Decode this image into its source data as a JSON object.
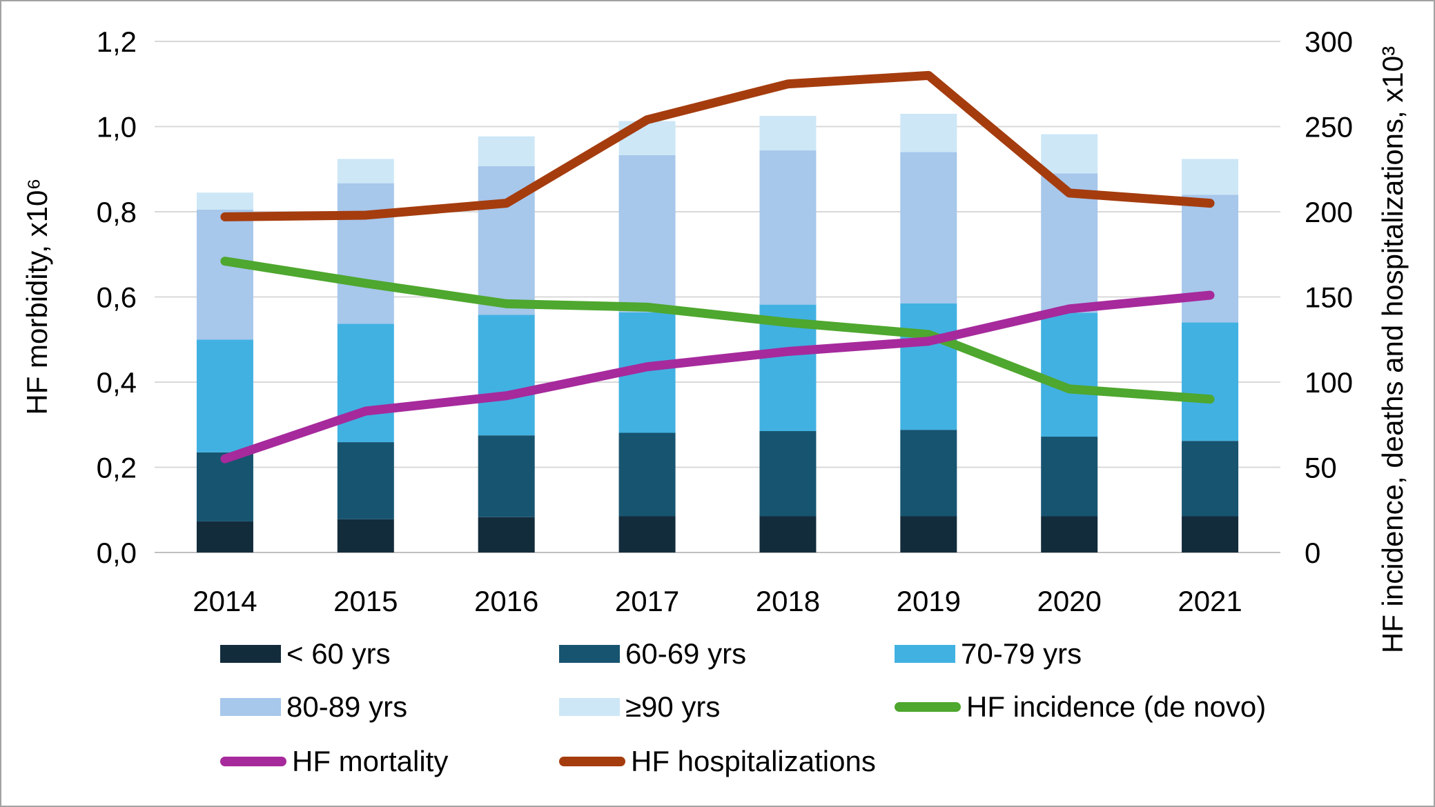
{
  "chart_data": {
    "type": "bar+line",
    "title": "",
    "categories": [
      "2014",
      "2015",
      "2016",
      "2017",
      "2018",
      "2019",
      "2020",
      "2021"
    ],
    "left_axis": {
      "title": "HF morbidity, x10⁶",
      "ticks": [
        "0,0",
        "0,2",
        "0,4",
        "0,6",
        "0,8",
        "1,0",
        "1,2"
      ],
      "tick_values": [
        0,
        0.2,
        0.4,
        0.6,
        0.8,
        1.0,
        1.2
      ],
      "range": [
        0,
        1.2
      ],
      "grid": true
    },
    "right_axis": {
      "title": "HF incidence, deaths and hospitalizations, x10³",
      "ticks": [
        "0",
        "50",
        "100",
        "150",
        "200",
        "250",
        "300"
      ],
      "tick_values": [
        0,
        50,
        100,
        150,
        200,
        250,
        300
      ],
      "range": [
        0,
        300
      ]
    },
    "bar_series": [
      {
        "id": "under-60",
        "name": "< 60 yrs",
        "color": "#132c3c",
        "axis": "left",
        "values": [
          0.073,
          0.078,
          0.083,
          0.085,
          0.085,
          0.085,
          0.085,
          0.085
        ]
      },
      {
        "id": "60-69",
        "name": "60-69 yrs",
        "color": "#175470",
        "axis": "left",
        "values": [
          0.162,
          0.181,
          0.192,
          0.196,
          0.2,
          0.203,
          0.187,
          0.177
        ]
      },
      {
        "id": "70-79",
        "name": "70-79 yrs",
        "color": "#41b1e2",
        "axis": "left",
        "values": [
          0.265,
          0.278,
          0.283,
          0.283,
          0.297,
          0.297,
          0.291,
          0.278
        ]
      },
      {
        "id": "80-89",
        "name": "80-89 yrs",
        "color": "#a7c7eb",
        "axis": "left",
        "values": [
          0.305,
          0.33,
          0.349,
          0.369,
          0.362,
          0.355,
          0.327,
          0.3
        ]
      },
      {
        "id": "90-plus",
        "name": "≥90 yrs",
        "color": "#cde7f6",
        "axis": "left",
        "values": [
          0.04,
          0.057,
          0.07,
          0.08,
          0.081,
          0.09,
          0.092,
          0.084
        ]
      }
    ],
    "line_series": [
      {
        "id": "incidence",
        "name": "HF incidence (de novo)",
        "color": "#4ea72e",
        "axis": "right",
        "values": [
          171,
          158,
          146,
          144,
          135,
          128,
          96,
          90
        ]
      },
      {
        "id": "mortality",
        "name": "HF mortality",
        "color": "#a62a9c",
        "axis": "right",
        "values": [
          55,
          83,
          92,
          109,
          118,
          124,
          143,
          151
        ]
      },
      {
        "id": "hospitalizations",
        "name": "HF hospitalizations",
        "color": "#a53c0e",
        "axis": "right",
        "values": [
          197,
          198,
          205,
          254,
          275,
          280,
          211,
          205
        ]
      }
    ],
    "legend": [
      {
        "id": "under-60",
        "label": "< 60 yrs",
        "kind": "swatch",
        "color": "#132c3c"
      },
      {
        "id": "60-69",
        "label": "60-69 yrs",
        "kind": "swatch",
        "color": "#175470"
      },
      {
        "id": "70-79",
        "label": "70-79 yrs",
        "kind": "swatch",
        "color": "#41b1e2"
      },
      {
        "id": "80-89",
        "label": "80-89 yrs",
        "kind": "swatch",
        "color": "#a7c7eb"
      },
      {
        "id": "90-plus",
        "label": "≥90 yrs",
        "kind": "swatch",
        "color": "#cde7f6"
      },
      {
        "id": "incidence",
        "label": "HF incidence (de novo)",
        "kind": "line",
        "color": "#4ea72e"
      },
      {
        "id": "mortality",
        "label": "HF mortality",
        "kind": "line",
        "color": "#a62a9c"
      },
      {
        "id": "hospitalizations",
        "label": "HF hospitalizations",
        "kind": "line",
        "color": "#a53c0e"
      }
    ],
    "colors": {
      "gridline": "#d8d8d8",
      "baseline": "#bfbfbf",
      "text": "#000000"
    }
  }
}
